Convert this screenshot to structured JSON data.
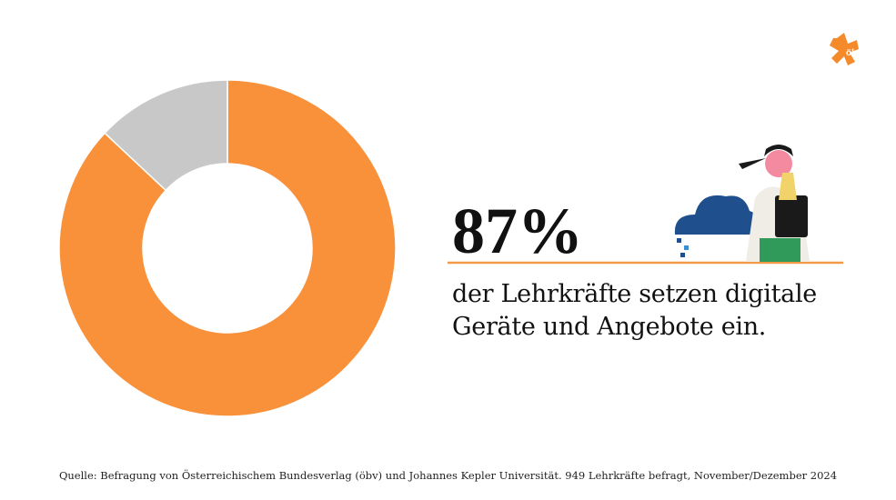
{
  "logo": "öbv",
  "chart_data": {
    "type": "donut",
    "values": [
      87,
      13
    ],
    "value_labels": [
      "87%",
      null
    ],
    "colors": [
      "#f9913b",
      "#c8c8c8"
    ],
    "description": "der Lehrkräfte setzen digitale Geräte und Angebote ein.",
    "source": "Quelle: Befragung von Österreichischem Bundesverlag (öbv) und Johannes Kepler Universität. 949 Lehrkräfte befragt, November/Dezember 2024"
  }
}
